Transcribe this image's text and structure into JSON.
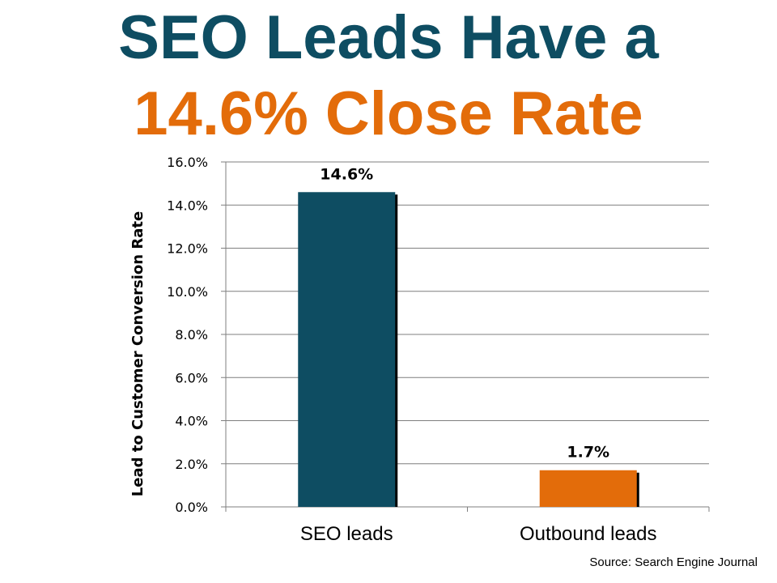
{
  "slide": {
    "title_line1": "SEO Leads Have a",
    "title_line2": "14.6% Close Rate",
    "title_color_1": "#0e4d62",
    "title_color_2": "#e36c0a",
    "source": "Source: Search Engine Journal"
  },
  "chart_data": {
    "type": "bar",
    "categories": [
      "SEO leads",
      "Outbound leads"
    ],
    "values": [
      14.6,
      1.7
    ],
    "data_labels": [
      "14.6%",
      "1.7%"
    ],
    "bar_colors": [
      "#0e4d62",
      "#e36c0a"
    ],
    "ylabel": "Lead to Customer Conversion Rate",
    "xlabel": "",
    "ylim": [
      0,
      16
    ],
    "yticks": [
      0,
      2,
      4,
      6,
      8,
      10,
      12,
      14,
      16
    ],
    "ytick_labels": [
      "0.0%",
      "2.0%",
      "4.0%",
      "6.0%",
      "8.0%",
      "10.0%",
      "12.0%",
      "14.0%",
      "16.0%"
    ],
    "grid": true,
    "legend": "none"
  }
}
